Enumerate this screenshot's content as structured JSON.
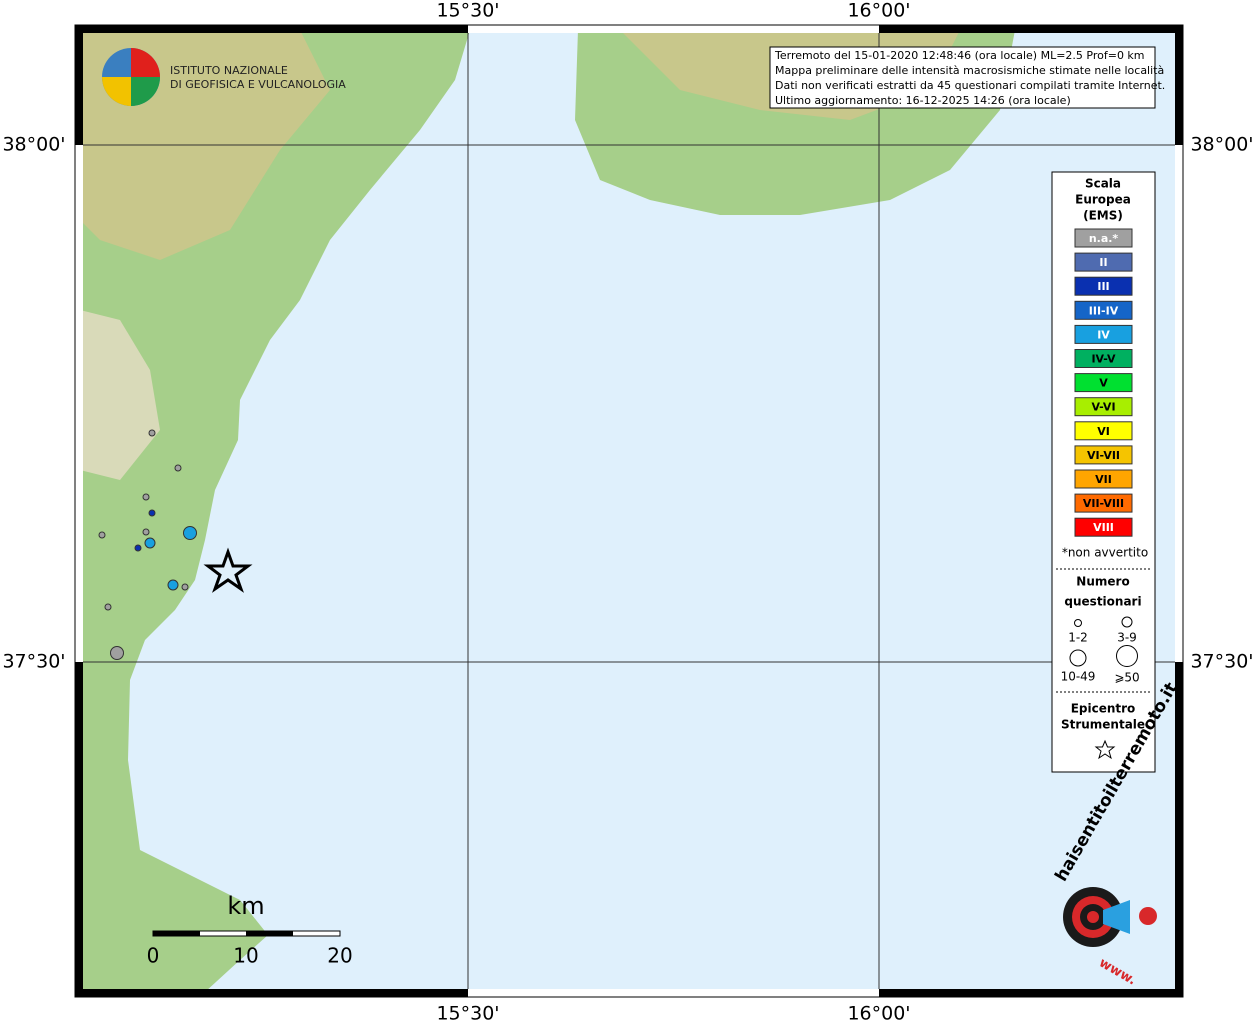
{
  "map": {
    "lon_labels": [
      "15°30'",
      "16°00'"
    ],
    "lat_labels": [
      "38°00'",
      "37°30'"
    ],
    "info": [
      "Terremoto del 15-01-2020 12:48:46 (ora locale) ML=2.5 Prof=0 km",
      "Mappa preliminare delle intensità macrosismiche stimate nelle località",
      "Dati non verificati estratti da 45 questionari compilati tramite Internet.",
      "Ultimo aggiornamento: 16-12-2025 14:26 (ora locale)"
    ],
    "logo": [
      "ISTITUTO NAZIONALE",
      "DI GEOFISICA E VULCANOLOGIA"
    ],
    "site_logo": [
      "haisentitoilterremoto.it",
      "www."
    ],
    "legend": {
      "title": [
        "Scala",
        "Europea",
        "(EMS)"
      ],
      "classes": [
        {
          "label": "n.a.*",
          "color": "#a0a0a0",
          "text": "#ffffff"
        },
        {
          "label": "II",
          "color": "#4f6bb0",
          "text": "#ffffff"
        },
        {
          "label": "III",
          "color": "#0a30b0",
          "text": "#ffffff"
        },
        {
          "label": "III-IV",
          "color": "#1565c8",
          "text": "#ffffff"
        },
        {
          "label": "IV",
          "color": "#18a0e0",
          "text": "#ffffff"
        },
        {
          "label": "IV-V",
          "color": "#00b060",
          "text": "#000000"
        },
        {
          "label": "V",
          "color": "#00e030",
          "text": "#000000"
        },
        {
          "label": "V-VI",
          "color": "#a8ee00",
          "text": "#000000"
        },
        {
          "label": "VI",
          "color": "#ffff00",
          "text": "#000000"
        },
        {
          "label": "VI-VII",
          "color": "#f5c400",
          "text": "#000000"
        },
        {
          "label": "VII",
          "color": "#ffa500",
          "text": "#000000"
        },
        {
          "label": "VII-VIII",
          "color": "#ff6a00",
          "text": "#000000"
        },
        {
          "label": "VIII",
          "color": "#ff0000",
          "text": "#ffffff"
        }
      ],
      "note": "*non avvertito",
      "size_title": [
        "Numero",
        "questionari"
      ],
      "sizes": [
        "1-2",
        "3-9",
        "10-49",
        "⩾50"
      ],
      "epicenter": [
        "Epicentro",
        "Strumentale"
      ]
    },
    "scale": {
      "unit": "km",
      "ticks": [
        "0",
        "10",
        "20"
      ]
    }
  }
}
